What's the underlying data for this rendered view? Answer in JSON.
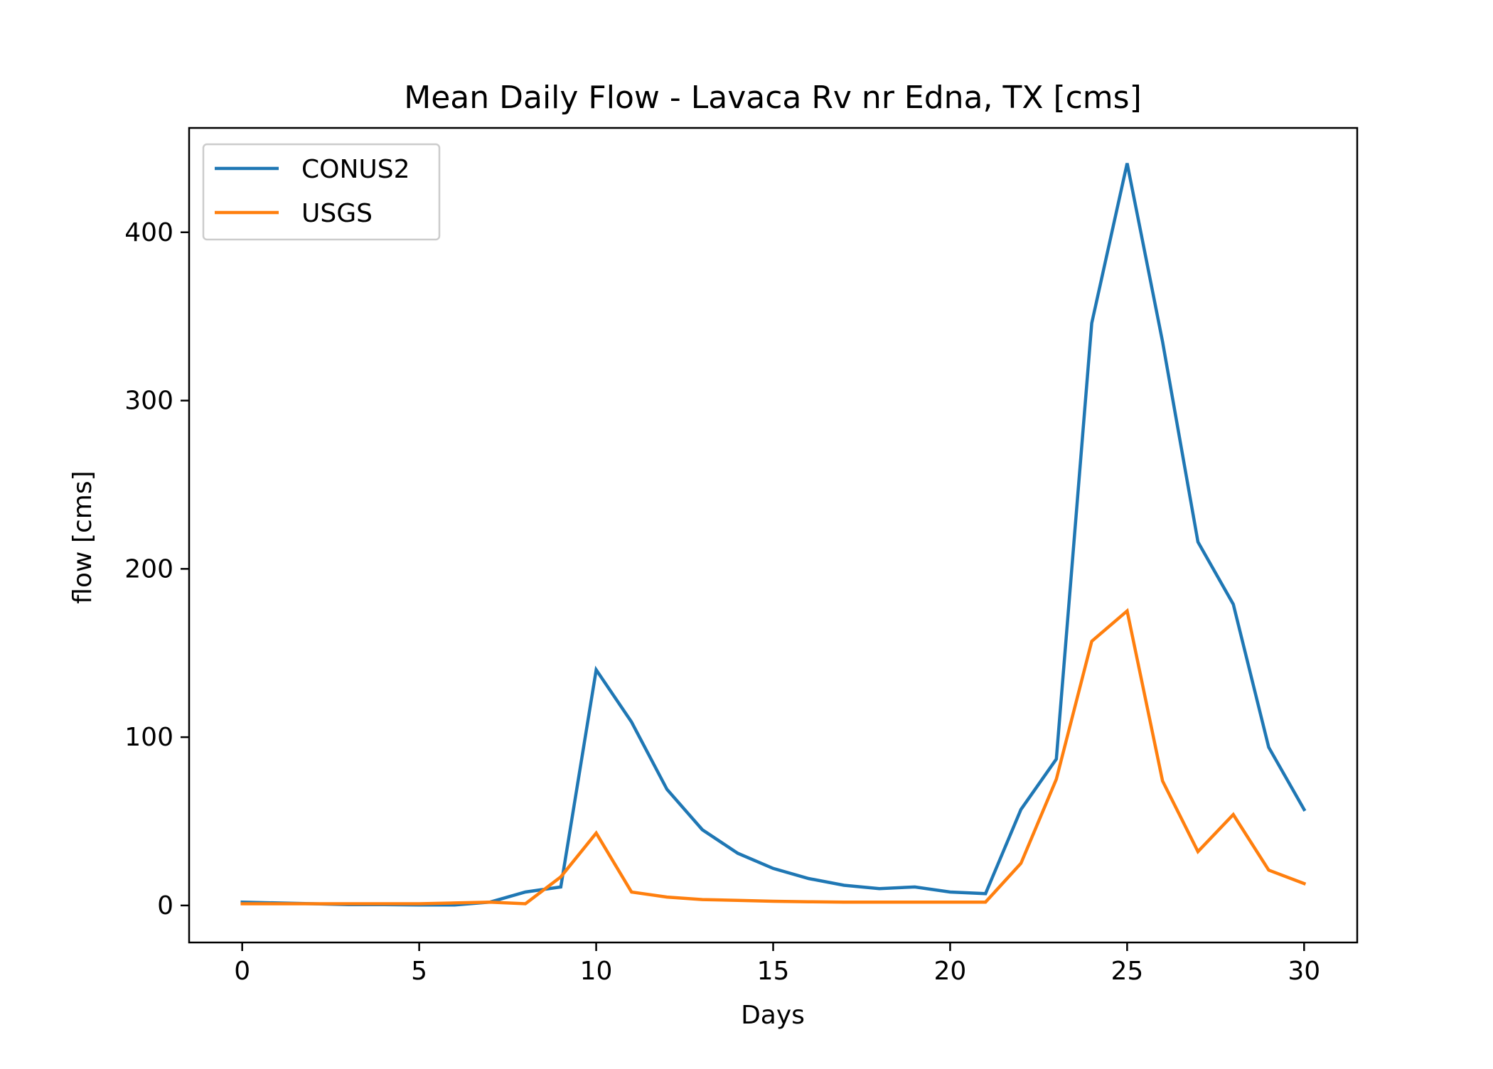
{
  "chart_data": {
    "type": "line",
    "title": "Mean Daily Flow - Lavaca Rv nr Edna, TX [cms]",
    "xlabel": "Days",
    "ylabel": "flow [cms]",
    "xlim": [
      -1.5,
      31.5
    ],
    "ylim": [
      -22,
      462
    ],
    "xticks": [
      0,
      5,
      10,
      15,
      20,
      25,
      30
    ],
    "yticks": [
      0,
      100,
      200,
      300,
      400
    ],
    "grid": false,
    "legend_position": "upper-left",
    "x": [
      0,
      1,
      2,
      3,
      4,
      5,
      6,
      7,
      8,
      9,
      10,
      11,
      12,
      13,
      14,
      15,
      16,
      17,
      18,
      19,
      20,
      21,
      22,
      23,
      24,
      25,
      26,
      27,
      28,
      29,
      30
    ],
    "series": [
      {
        "name": "CONUS2",
        "color": "#1f77b4",
        "values": [
          2,
          1.5,
          1,
          0.5,
          0.5,
          0.3,
          0.3,
          2,
          8,
          11,
          140,
          109,
          69,
          45,
          31,
          22,
          16,
          12,
          10,
          11,
          8,
          7,
          57,
          87,
          346,
          441,
          335,
          216,
          179,
          94,
          57
        ]
      },
      {
        "name": "USGS",
        "color": "#ff7f0e",
        "values": [
          1,
          1,
          1,
          1,
          1,
          1,
          1.5,
          2,
          1,
          17,
          43,
          8,
          5,
          3.5,
          3,
          2.5,
          2.2,
          2,
          2,
          2,
          2,
          2,
          25,
          75,
          157,
          175,
          74,
          32,
          54,
          21,
          13
        ]
      }
    ]
  }
}
